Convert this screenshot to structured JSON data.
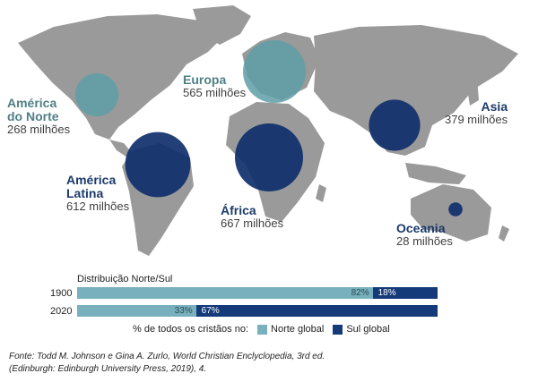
{
  "chart_data": [
    {
      "type": "bubble-map",
      "regions": [
        {
          "name_line1": "América",
          "name_line2": "do Norte",
          "value_label": "268 milhões",
          "value": 268,
          "group": "north"
        },
        {
          "name_line1": "Europa",
          "name_line2": "",
          "value_label": "565 milhões",
          "value": 565,
          "group": "north"
        },
        {
          "name_line1": "Asia",
          "name_line2": "",
          "value_label": "379 milhões",
          "value": 379,
          "group": "south"
        },
        {
          "name_line1": "América",
          "name_line2": "Latina",
          "value_label": "612 milhões",
          "value": 612,
          "group": "south"
        },
        {
          "name_line1": "África",
          "name_line2": "",
          "value_label": "667 milhões",
          "value": 667,
          "group": "south"
        },
        {
          "name_line1": "Oceania",
          "name_line2": "",
          "value_label": "28 milhões",
          "value": 28,
          "group": "south"
        }
      ]
    },
    {
      "type": "stacked-bar",
      "title": "Distribuição Norte/Sul",
      "categories": [
        "1900",
        "2020"
      ],
      "series": [
        {
          "name": "Norte global",
          "values": [
            82,
            33
          ],
          "labels": [
            "82%",
            "33%"
          ]
        },
        {
          "name": "Sul global",
          "values": [
            18,
            67
          ],
          "labels": [
            "18%",
            "67%"
          ]
        }
      ],
      "legend_prefix": "% de todos os cristãos no:"
    }
  ],
  "colors": {
    "north": "#78b0bd",
    "south": "#143a7a",
    "north_bubble": "#5e9ea6",
    "south_bubble": "#0f2f6b",
    "land": "#9a9a9a"
  },
  "source_line1": "Fonte: Todd M. Johnson e Gina A. Zurlo, World Christian Enclyclopedia, 3rd ed.",
  "source_line2": "(Edinburgh: Edinburgh University Press, 2019), 4."
}
